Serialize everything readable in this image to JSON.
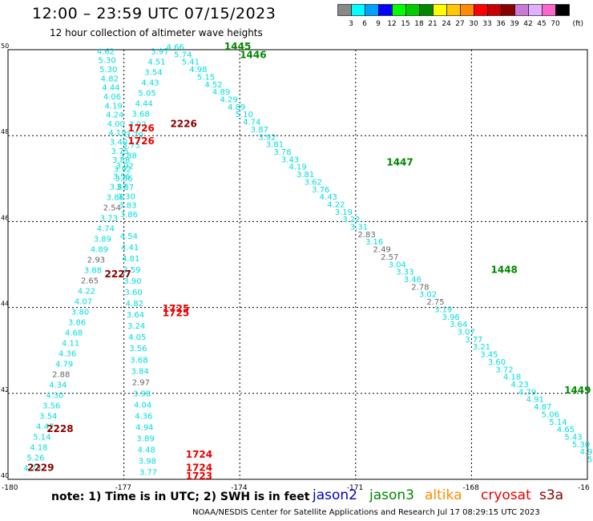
{
  "title": "12:00 – 23:59 UTC 07/15/2023",
  "subtitle": "12 hour collection of altimeter wave heights",
  "legend": {
    "unit": "(ft)",
    "bins": [
      {
        "label": "3",
        "color": "#888888"
      },
      {
        "label": "6",
        "color": "#00ffff"
      },
      {
        "label": "9",
        "color": "#00a0ff"
      },
      {
        "label": "12",
        "color": "#0000ff"
      },
      {
        "label": "15",
        "color": "#00ff00"
      },
      {
        "label": "18",
        "color": "#00cc00"
      },
      {
        "label": "21",
        "color": "#008800"
      },
      {
        "label": "24",
        "color": "#ffff00"
      },
      {
        "label": "27",
        "color": "#ffc800"
      },
      {
        "label": "30",
        "color": "#ff8c00"
      },
      {
        "label": "33",
        "color": "#ff0000"
      },
      {
        "label": "36",
        "color": "#c80000"
      },
      {
        "label": "39",
        "color": "#880000"
      },
      {
        "label": "42",
        "color": "#c87ad4"
      },
      {
        "label": "45",
        "color": "#e0b0ff"
      },
      {
        "label": "70",
        "color": "#ff66cc"
      },
      {
        "label": "",
        "color": "#000000"
      }
    ]
  },
  "map": {
    "lon_ticks": [
      "-180",
      "-177",
      "-174",
      "-171",
      "-168",
      "-16"
    ],
    "lat_ticks": [
      "50",
      "48",
      "46",
      "44",
      "42",
      "40"
    ],
    "lon_range": [
      -180,
      -165
    ],
    "lat_range": [
      40,
      50
    ],
    "grid_lines_lon": [
      -177,
      -174,
      -171,
      -168
    ],
    "grid_lines_lat": [
      48,
      46,
      44,
      42
    ]
  },
  "tracks": [
    {
      "name": "track_a",
      "start": [
        -175.9,
        50.0
      ],
      "end": [
        -165.0,
        40.4
      ],
      "color": "#00dddd",
      "values": [
        "4.66",
        "5.74",
        "5.41",
        "4.98",
        "5.15",
        "4.52",
        "4.89",
        "4.29",
        "4.89",
        "5.10",
        "4.74",
        "3.87",
        "3.92",
        "3.81",
        "3.78",
        "3.43",
        "4.19",
        "3.81",
        "3.62",
        "3.76",
        "4.43",
        "4.22",
        "3.19",
        "3.22",
        "3.31",
        "2.83",
        "3.16",
        "2.49",
        "2.57",
        "3.04",
        "3.33",
        "3.46",
        "2.78",
        "3.02",
        "2.75",
        "3.19",
        "3.96",
        "3.64",
        "3.07",
        "3.77",
        "3.21",
        "3.45",
        "3.60",
        "3.72",
        "4.18",
        "4.23",
        "4.79",
        "4.91",
        "4.87",
        "5.06",
        "5.14",
        "4.65",
        "5.43",
        "5.30",
        "4.9",
        "5"
      ]
    },
    {
      "name": "track_b",
      "start": [
        -176.3,
        49.9
      ],
      "end": [
        -179.6,
        40.2
      ],
      "color": "#00dddd",
      "values": [
        "3.97",
        "4.51",
        "3.54",
        "4.43",
        "5.05",
        "4.44",
        "3.68",
        "3.92",
        "3.70",
        "3.75",
        "3.88",
        "3.92",
        "3.56",
        "3.87",
        "3.86",
        "2.54",
        "3.73",
        "4.74",
        "3.89",
        "4.89",
        "2.93",
        "3.88",
        "2.65",
        "4.22",
        "4.07",
        "3.80",
        "3.86",
        "4.68",
        "4.11",
        "4.36",
        "4.79",
        "2.88",
        "4.34",
        "4.30",
        "3.56",
        "3.54",
        "4.47",
        "5.14",
        "4.18",
        "5.26",
        "4.73"
      ]
    },
    {
      "name": "track_c",
      "start": [
        -177.7,
        49.9
      ],
      "end": [
        -177.1,
        46.1
      ],
      "color": "#00dddd",
      "values": [
        "4.62",
        "5.30",
        "5.30",
        "4.82",
        "4.44",
        "4.06",
        "4.19",
        "4.24",
        "4.00",
        "4.19",
        "3.40",
        "3.75",
        "3.88",
        "3.92",
        "3.56",
        "3.87",
        "3.30",
        "3.83",
        "3.86"
      ]
    },
    {
      "name": "track_d",
      "start": [
        -177.1,
        45.6
      ],
      "end": [
        -176.6,
        40.1
      ],
      "color": "#00dddd",
      "values": [
        "4.54",
        "4.41",
        "4.81",
        "3.59",
        "3.90",
        "3.60",
        "4.82",
        "3.64",
        "3.24",
        "4.05",
        "3.56",
        "3.68",
        "3.84",
        "2.97",
        "3.98",
        "4.04",
        "4.36",
        "4.94",
        "3.89",
        "4.48",
        "3.98",
        "3.77"
      ]
    }
  ],
  "time_labels": [
    {
      "text": "1445",
      "lon": -174.4,
      "lat": 50.0,
      "color": "#008800"
    },
    {
      "text": "1446",
      "lon": -174.0,
      "lat": 49.8,
      "color": "#008800"
    },
    {
      "text": "1447",
      "lon": -170.2,
      "lat": 47.3,
      "color": "#008800"
    },
    {
      "text": "1448",
      "lon": -167.5,
      "lat": 44.8,
      "color": "#008800"
    },
    {
      "text": "1449",
      "lon": -165.6,
      "lat": 42.0,
      "color": "#008800"
    },
    {
      "text": "1726",
      "lon": -176.9,
      "lat": 48.1,
      "color": "#ee0000"
    },
    {
      "text": "2226",
      "lon": -175.8,
      "lat": 48.2,
      "color": "#880000"
    },
    {
      "text": "1726",
      "lon": -176.9,
      "lat": 47.8,
      "color": "#ee0000"
    },
    {
      "text": "2227",
      "lon": -177.5,
      "lat": 44.7,
      "color": "#880000"
    },
    {
      "text": "1725",
      "lon": -176.0,
      "lat": 43.9,
      "color": "#ee0000"
    },
    {
      "text": "1725",
      "lon": -176.0,
      "lat": 43.8,
      "color": "#ee0000"
    },
    {
      "text": "2228",
      "lon": -179.0,
      "lat": 41.1,
      "color": "#880000"
    },
    {
      "text": "1724",
      "lon": -175.4,
      "lat": 40.5,
      "color": "#ee0000"
    },
    {
      "text": "1724",
      "lon": -175.4,
      "lat": 40.2,
      "color": "#ee0000"
    },
    {
      "text": "1723",
      "lon": -175.4,
      "lat": 40.0,
      "color": "#ee0000"
    },
    {
      "text": "2229",
      "lon": -179.5,
      "lat": 40.2,
      "color": "#880000"
    }
  ],
  "note": "note: 1) Time is in UTC; 2) SWH is in feet",
  "satellites": [
    {
      "name": "jason2",
      "color": "#0000cc"
    },
    {
      "name": "jason3",
      "color": "#008800"
    },
    {
      "name": "altika",
      "color": "#ff8c00"
    },
    {
      "name": "cryosat",
      "color": "#ee0000"
    },
    {
      "name": "s3a",
      "color": "#880000"
    }
  ],
  "credit": "NOAA/NESDIS Center for Satellite Applications and Research    Jul 17 08:29:15 UTC 2023"
}
